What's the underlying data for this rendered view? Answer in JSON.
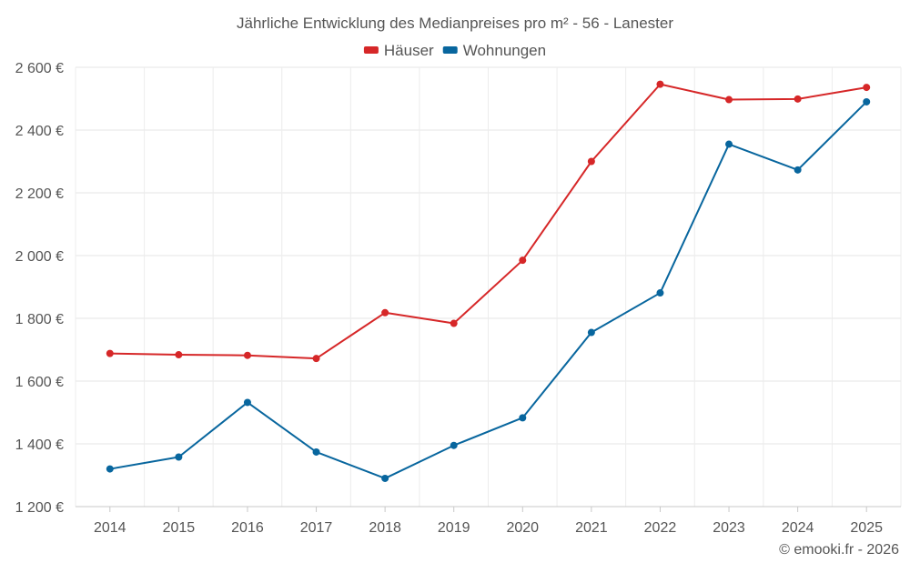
{
  "chart_data": {
    "type": "line",
    "title": "Jährliche Entwicklung des Medianpreises pro m² - 56 - Lanester",
    "xlabel": "",
    "ylabel": "",
    "categories": [
      "2014",
      "2015",
      "2016",
      "2017",
      "2018",
      "2019",
      "2020",
      "2021",
      "2022",
      "2023",
      "2024",
      "2025"
    ],
    "ylim": [
      1200,
      2600
    ],
    "yticks": [
      1200,
      1400,
      1600,
      1800,
      2000,
      2200,
      2400,
      2600
    ],
    "ytick_labels": [
      "1 200 €",
      "1 400 €",
      "1 600 €",
      "1 800 €",
      "2 000 €",
      "2 200 €",
      "2 400 €",
      "2 600 €"
    ],
    "grid": true,
    "legend_position": "top-center",
    "series": [
      {
        "name": "Häuser",
        "color": "#d62728",
        "values": [
          1688,
          1684,
          1682,
          1672,
          1818,
          1784,
          1985,
          2300,
          2546,
          2497,
          2499,
          2536
        ]
      },
      {
        "name": "Wohnungen",
        "color": "#08669e",
        "values": [
          1320,
          1358,
          1532,
          1374,
          1290,
          1395,
          1483,
          1755,
          1881,
          2355,
          2273,
          2490
        ]
      }
    ]
  },
  "watermark": "© emooki.fr - 2026"
}
